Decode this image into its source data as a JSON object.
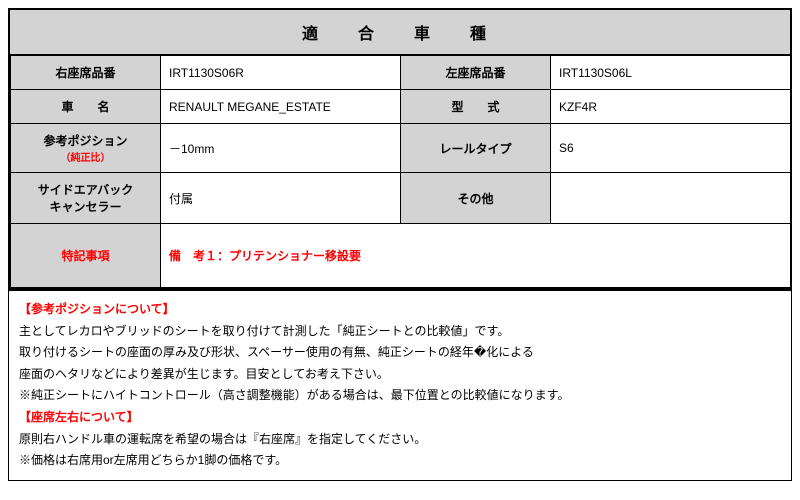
{
  "title": "適　合　車　種",
  "rows": [
    {
      "l1": "右座席品番",
      "v1": "IRT1130S06R",
      "l2": "左座席品番",
      "v2": "IRT1130S06L"
    },
    {
      "l1": "車　　名",
      "v1": "RENAULT  MEGANE_ESTATE",
      "l2": "型　　式",
      "v2": "KZF4R"
    },
    {
      "l1_line1": "参考ポジション",
      "l1_line2": "（純正比）",
      "v1": "－10mm",
      "l2": "レールタイプ",
      "v2": "S6"
    },
    {
      "l1_line1": "サイドエアバック",
      "l1_line2": "キャンセラー",
      "v1": "付属",
      "l2": "その他",
      "v2": ""
    }
  ],
  "remarks_label": "特記事項",
  "remarks_value": "備　考１：プリテンショナー移設要",
  "notes": {
    "h1": "【参考ポジションについて】",
    "p1": "主としてレカロやブリッドのシートを取り付けて計測した「純正シートとの比較値」です。",
    "p2": "取り付けるシートの座面の厚み及び形状、スペーサー使用の有無、純正シートの経年�化による",
    "p3": "座面のヘタリなどにより差異が生じます。目安としてお考え下さい。",
    "p4": "※純正シートにハイトコントロール（高さ調整機能）がある場合は、最下位置との比較値になります。",
    "h2": "【座席左右について】",
    "p5": "原則右ハンドル車の運転席を希望の場合は『右座席』を指定してください。",
    "p6": "※価格は右席用or左席用どちらか1脚の価格です。"
  }
}
